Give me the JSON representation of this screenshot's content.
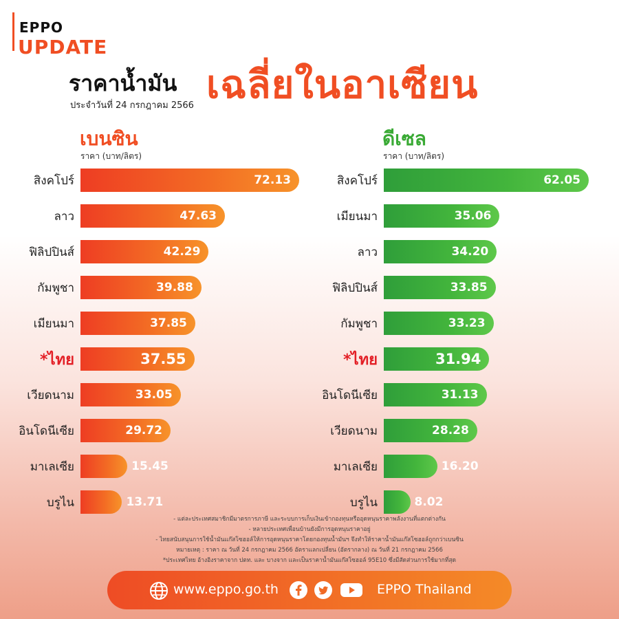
{
  "brand": {
    "small": "EPPO",
    "big": "UPDATE"
  },
  "header": {
    "title_left": "ราคาน้ำมัน",
    "title_big": "เฉลี่ยในอาเซียน",
    "subtitle": "ประจำวันที่ 24 กรกฎาคม 2566"
  },
  "chart_data": [
    {
      "type": "bar",
      "title": "เบนซิน",
      "ylabel": "ราคา (บาท/ลิตร)",
      "categories": [
        "สิงคโปร์",
        "ลาว",
        "ฟิลิปปินส์",
        "กัมพูชา",
        "เมียนมา",
        "*ไทย",
        "เวียดนาม",
        "อินโดนีเซีย",
        "มาเลเซีย",
        "บรูไน"
      ],
      "values": [
        72.13,
        47.63,
        42.29,
        39.88,
        37.85,
        37.55,
        33.05,
        29.72,
        15.45,
        13.71
      ],
      "value_labels": [
        "72.13",
        "47.63",
        "42.29",
        "39.88",
        "37.85",
        "37.55",
        "33.05",
        "29.72",
        "15.45",
        "13.71"
      ],
      "highlight_index": 5,
      "color": "#f04e23"
    },
    {
      "type": "bar",
      "title": "ดีเซล",
      "ylabel": "ราคา (บาท/ลิตร)",
      "categories": [
        "สิงคโปร์",
        "เมียนมา",
        "ลาว",
        "ฟิลิปปินส์",
        "กัมพูชา",
        "*ไทย",
        "อินโดนีเซีย",
        "เวียดนาม",
        "มาเลเซีย",
        "บรูไน"
      ],
      "values": [
        62.05,
        35.06,
        34.2,
        33.85,
        33.23,
        31.94,
        31.13,
        28.28,
        16.2,
        8.02
      ],
      "value_labels": [
        "62.05",
        "35.06",
        "34.20",
        "33.85",
        "33.23",
        "31.94",
        "31.13",
        "28.28",
        "16.20",
        "8.02"
      ],
      "highlight_index": 5,
      "color": "#3aaa35"
    }
  ],
  "notes": [
    "- แต่ละประเทศสมาชิกมีมาตรการภาษี และระบบการเก็บเงินเข้ากองทุนหรืออุดหนุนราคาพลังงานที่แตกต่างกัน",
    "- หลายประเทศเพื่อนบ้านยังมีการอุดหนุนราคาอยู่",
    "- ไทยสนับสนุนการใช้น้ำมันแก๊สโซฮอล์ให้การอุดหนุนราคาโดยกองทุนน้ำมันฯ จึงทำให้ราคาน้ำมันแก๊สโซฮอล์ถูกกว่าเบนซิน",
    "หมายเหตุ : ราคา ณ วันที่ 24 กรกฎาคม 2566 อัตราแลกเปลี่ยน (อัตรากลาง) ณ วันที่ 21 กรกฎาคม 2566",
    "*ประเทศไทย อ้างอิงราคาจาก ปตท. และ บางจาก และเป็นราคาน้ำมันแก๊สโซฮอล์ 95E10 ซึ่งมีสัดส่วนการใช้มากที่สุด"
  ],
  "footer": {
    "website": "www.eppo.go.th",
    "name": "EPPO Thailand"
  },
  "colors": {
    "orange": "#f04e23",
    "green": "#3aaa35",
    "highlight": "#e31f26"
  }
}
